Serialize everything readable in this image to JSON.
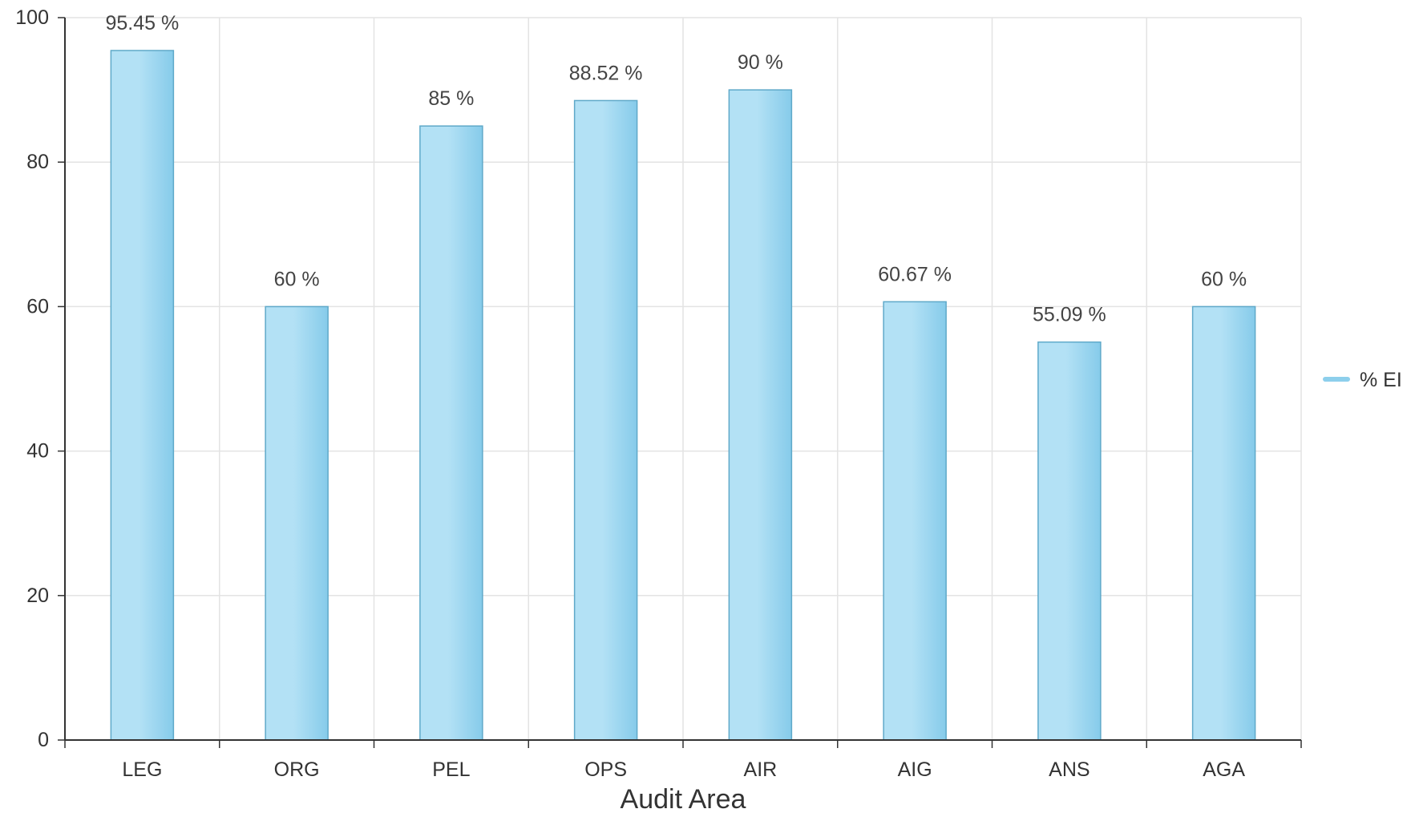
{
  "chart_data": {
    "type": "bar",
    "categories": [
      "LEG",
      "ORG",
      "PEL",
      "OPS",
      "AIR",
      "AIG",
      "ANS",
      "AGA"
    ],
    "series": [
      {
        "name": "% EI",
        "values": [
          95.45,
          60,
          85,
          88.52,
          90,
          60.67,
          55.09,
          60
        ],
        "labels": [
          "95.45 %",
          "60 %",
          "85 %",
          "88.52 %",
          "90 %",
          "60.67 %",
          "55.09 %",
          "60 %"
        ],
        "color": "#8dcfec"
      }
    ],
    "title": "",
    "xlabel": "Audit Area",
    "ylabel": "",
    "ylim": [
      0,
      100
    ],
    "yticks": [
      0,
      20,
      40,
      60,
      80,
      100
    ],
    "grid": true,
    "legend": "right",
    "colors": {
      "bar_light": "#b3e1f5",
      "bar_dark": "#86cbea",
      "bar_stroke": "#5fa9c9",
      "grid": "#e3e3e3",
      "axis": "#333333"
    }
  }
}
